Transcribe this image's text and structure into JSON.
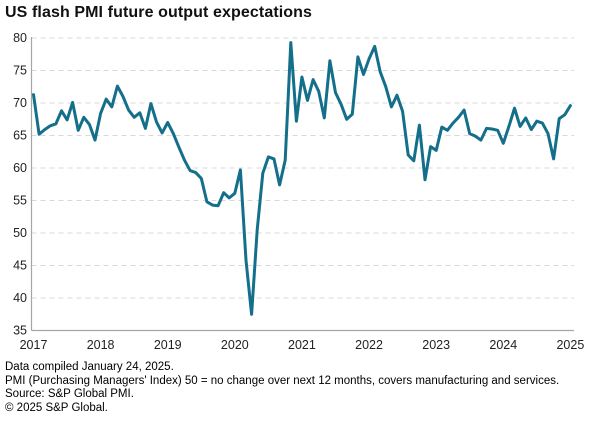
{
  "chart_data": {
    "type": "line",
    "title": "US flash PMI future output expectations",
    "xlabel": "",
    "ylabel": "",
    "ylim": [
      35,
      80
    ],
    "y_ticks": [
      80,
      75,
      70,
      65,
      60,
      55,
      50,
      45,
      40,
      35
    ],
    "x_tick_labels": [
      "2017",
      "2018",
      "2019",
      "2020",
      "2021",
      "2022",
      "2023",
      "2024",
      "2025"
    ],
    "grid": "horizontal-dashed",
    "legend": "none",
    "frequency": "monthly",
    "x_start": "2017-01",
    "x_end": "2025-01",
    "series": [
      {
        "name": "US flash PMI future output expectations",
        "color": "#136f8a",
        "values": [
          71.3,
          65.2,
          65.9,
          66.5,
          66.8,
          68.8,
          67.4,
          70.1,
          65.8,
          67.8,
          66.7,
          64.3,
          68.4,
          70.6,
          69.4,
          72.6,
          71.0,
          68.9,
          67.8,
          68.5,
          66.1,
          69.9,
          67.1,
          65.4,
          67.0,
          65.3,
          63.2,
          61.2,
          59.6,
          59.3,
          58.4,
          54.8,
          54.3,
          54.2,
          56.2,
          55.4,
          56.1,
          59.7,
          45.8,
          37.5,
          50.5,
          59.2,
          61.7,
          61.4,
          57.4,
          61.2,
          79.3,
          67.2,
          74.0,
          70.4,
          73.6,
          71.8,
          67.7,
          76.5,
          71.6,
          69.8,
          67.5,
          68.3,
          77.1,
          74.4,
          76.8,
          78.7,
          74.8,
          72.5,
          69.4,
          71.2,
          68.7,
          62.0,
          61.1,
          66.6,
          58.2,
          63.3,
          62.7,
          66.3,
          65.8,
          66.9,
          67.8,
          68.9,
          65.3,
          64.9,
          64.3,
          66.1,
          66.0,
          65.8,
          63.8,
          66.4,
          69.2,
          66.4,
          67.7,
          65.9,
          67.2,
          66.9,
          65.3,
          61.4,
          67.6,
          68.2,
          69.6
        ]
      }
    ],
    "colors": {
      "line": "#136f8a",
      "grid": "#d8d8d8",
      "axis": "#a6a6a6",
      "tick_text": "#222222"
    }
  },
  "footer": {
    "lines": [
      "Data compiled January 24, 2025.",
      "PMI (Purchasing Managers' Index) 50 = no change over next 12 months, covers manufacturing and services.",
      "Source: S&P Global PMI.",
      "© 2025 S&P Global."
    ]
  }
}
